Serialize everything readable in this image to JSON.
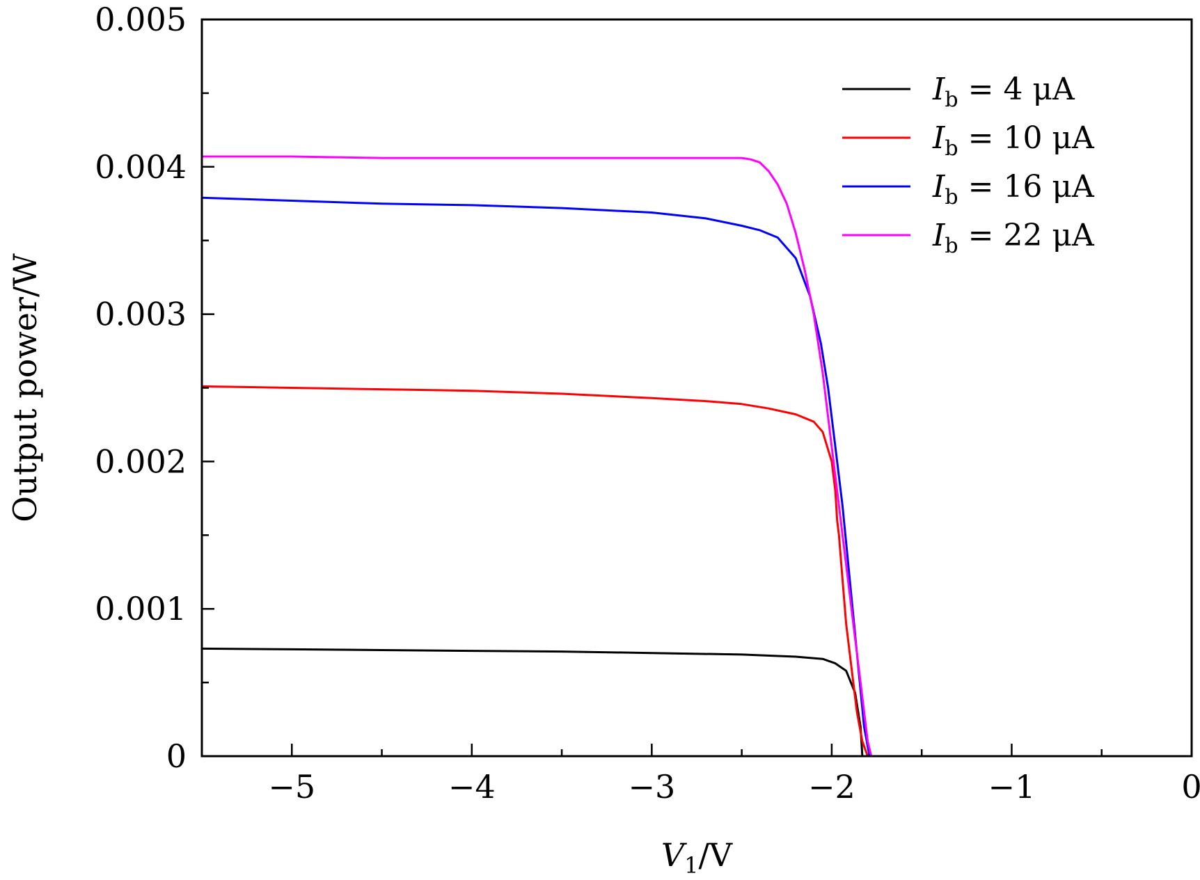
{
  "chart_data": {
    "type": "line",
    "xlabel": {
      "var": "V",
      "sub": "1",
      "unit": "/V"
    },
    "ylabel": "Output power/W",
    "xlim": [
      -5.5,
      0
    ],
    "ylim": [
      0,
      0.005
    ],
    "x_ticks": [
      -5,
      -4,
      -3,
      -2,
      -1,
      0
    ],
    "x_tick_labels": [
      "−5",
      "−4",
      "−3",
      "−2",
      "−1",
      "0"
    ],
    "x_minor_ticks": [
      -4.5,
      -3.5,
      -2.5,
      -1.5,
      -0.5
    ],
    "y_ticks": [
      0,
      0.001,
      0.002,
      0.003,
      0.004,
      0.005
    ],
    "y_tick_labels": [
      "0",
      "0.001",
      "0.002",
      "0.003",
      "0.004",
      "0.005"
    ],
    "y_minor_ticks": [
      0.0005,
      0.0015,
      0.0025,
      0.0035,
      0.0045
    ],
    "legend_position": "top-right",
    "grid": false,
    "series": [
      {
        "name": "I_b = 4 μA",
        "legend": {
          "sym": "I",
          "sub": "b",
          "rest": " = 4 μA"
        },
        "color": "#000000",
        "x": [
          -5.5,
          -5.0,
          -4.5,
          -4.0,
          -3.5,
          -3.0,
          -2.5,
          -2.2,
          -2.05,
          -1.98,
          -1.92,
          -1.87,
          -1.84,
          -1.83
        ],
        "y": [
          0.00073,
          0.000725,
          0.00072,
          0.000715,
          0.00071,
          0.0007,
          0.00069,
          0.000675,
          0.00066,
          0.00063,
          0.00058,
          0.00043,
          0.0002,
          0.0
        ]
      },
      {
        "name": "I_b = 10 μA",
        "legend": {
          "sym": "I",
          "sub": "b",
          "rest": " = 10 μA"
        },
        "color": "#ff0000",
        "x": [
          -5.5,
          -5.0,
          -4.5,
          -4.0,
          -3.5,
          -3.0,
          -2.7,
          -2.5,
          -2.35,
          -2.2,
          -2.1,
          -2.05,
          -2.0,
          -1.98,
          -1.97,
          -1.96,
          -1.94,
          -1.92,
          -1.89,
          -1.86,
          -1.83,
          -1.8
        ],
        "y": [
          0.00251,
          0.0025,
          0.00249,
          0.00248,
          0.00246,
          0.00243,
          0.00241,
          0.00239,
          0.00236,
          0.00232,
          0.00227,
          0.0022,
          0.002,
          0.0018,
          0.0016,
          0.0015,
          0.0012,
          0.0009,
          0.0006,
          0.0003,
          0.0001,
          0.0
        ]
      },
      {
        "name": "I_b = 16 μA",
        "legend": {
          "sym": "I",
          "sub": "b",
          "rest": " = 16 μA"
        },
        "color": "#0000ff",
        "x": [
          -5.5,
          -5.0,
          -4.5,
          -4.0,
          -3.5,
          -3.0,
          -2.7,
          -2.5,
          -2.4,
          -2.3,
          -2.2,
          -2.12,
          -2.06,
          -2.02,
          -1.98,
          -1.94,
          -1.9,
          -1.86,
          -1.82,
          -1.79
        ],
        "y": [
          0.00379,
          0.00377,
          0.00375,
          0.00374,
          0.00372,
          0.00369,
          0.00365,
          0.0036,
          0.00357,
          0.00352,
          0.00338,
          0.00312,
          0.0028,
          0.0025,
          0.0021,
          0.0017,
          0.0012,
          0.0007,
          0.0002,
          0.0
        ]
      },
      {
        "name": "I_b = 22 μA",
        "legend": {
          "sym": "I",
          "sub": "b",
          "rest": " = 22 μA"
        },
        "color": "#ff00ff",
        "x": [
          -5.5,
          -5.0,
          -4.5,
          -4.0,
          -3.5,
          -3.0,
          -2.7,
          -2.5,
          -2.45,
          -2.4,
          -2.35,
          -2.3,
          -2.25,
          -2.2,
          -2.15,
          -2.1,
          -2.05,
          -2.0,
          -1.96,
          -1.92,
          -1.88,
          -1.84,
          -1.8,
          -1.78
        ],
        "y": [
          0.00407,
          0.00407,
          0.00406,
          0.00406,
          0.00406,
          0.00406,
          0.00406,
          0.00406,
          0.00405,
          0.00403,
          0.00397,
          0.00388,
          0.00375,
          0.00355,
          0.0033,
          0.003,
          0.0026,
          0.0021,
          0.0017,
          0.0013,
          0.0009,
          0.0005,
          0.0001,
          0.0
        ]
      }
    ]
  }
}
